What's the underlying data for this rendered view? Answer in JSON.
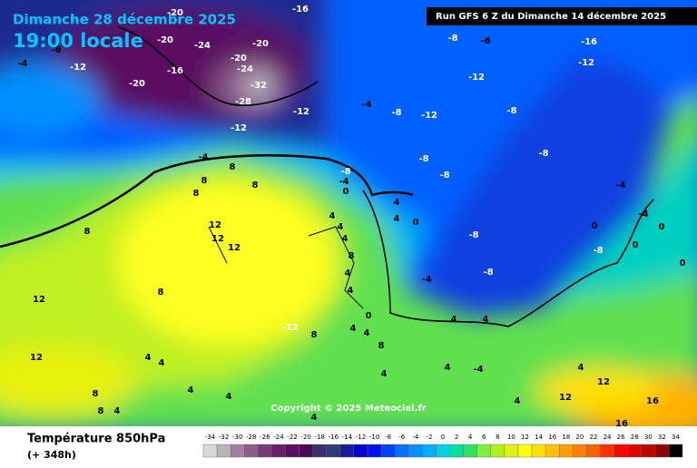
{
  "header": {
    "date": "Dimanche 28 décembre 2025",
    "time": "19:00 locale",
    "run": "Run GFS 6 Z du Dimanche 14 décembre 2025"
  },
  "map_labels": [
    "-20",
    "-16",
    "-6",
    "-4",
    "-12",
    "-20",
    "-24",
    "-20",
    "-16",
    "-20",
    "-20",
    "-24",
    "-32",
    "-28",
    "-12",
    "-12",
    "-8",
    "-6",
    "-16",
    "-12",
    "-12",
    "-4",
    "-8",
    "-12",
    "-8",
    "-8",
    "-8",
    "-8",
    "-8",
    "-4",
    "0",
    "-4",
    "8",
    "8",
    "8",
    "8",
    "4",
    "4",
    "0",
    "12",
    "12",
    "12",
    "8",
    "4",
    "4",
    "4",
    "8",
    "4",
    "4",
    "8",
    "12",
    "0",
    "-4",
    "-8",
    "-8",
    "-4",
    "0",
    "-4",
    "0",
    "-8",
    "0",
    "0",
    "4",
    "4",
    "-12",
    "8",
    "4",
    "4",
    "8",
    "12",
    "4",
    "4",
    "4",
    "-4",
    "4",
    "4",
    "8",
    "4",
    "4",
    "12",
    "12",
    "4",
    "16",
    "8",
    "4",
    "16",
    "4"
  ],
  "footer": {
    "title": "Température 850hPa",
    "lead": "(+ 348h)",
    "copyright": "Copyright © 2025 Meteociel.fr"
  },
  "legend": {
    "values": [
      -34,
      -32,
      -30,
      -28,
      -26,
      -24,
      -22,
      -20,
      -18,
      -16,
      -14,
      -12,
      -10,
      -8,
      -6,
      -4,
      -2,
      0,
      2,
      4,
      6,
      8,
      10,
      12,
      14,
      16,
      18,
      20,
      22,
      24,
      26,
      28,
      30,
      32,
      34
    ],
    "colors": [
      "#d8d8d8",
      "#b4b4b4",
      "#a080a0",
      "#8c5c8c",
      "#7a3a7a",
      "#6a1f6a",
      "#5a1060",
      "#4a0a55",
      "#3a3070",
      "#303c78",
      "#1a1aa0",
      "#0000d0",
      "#0010f0",
      "#0040ff",
      "#0070ff",
      "#0090ff",
      "#00b0ff",
      "#00d0e0",
      "#00e0a0",
      "#30e060",
      "#80f040",
      "#b0f020",
      "#e0f010",
      "#ffff00",
      "#ffe000",
      "#ffc000",
      "#ffa000",
      "#ff8000",
      "#ff6000",
      "#ff3000",
      "#ff0000",
      "#e00000",
      "#c00000",
      "#900000",
      "#000000"
    ]
  }
}
